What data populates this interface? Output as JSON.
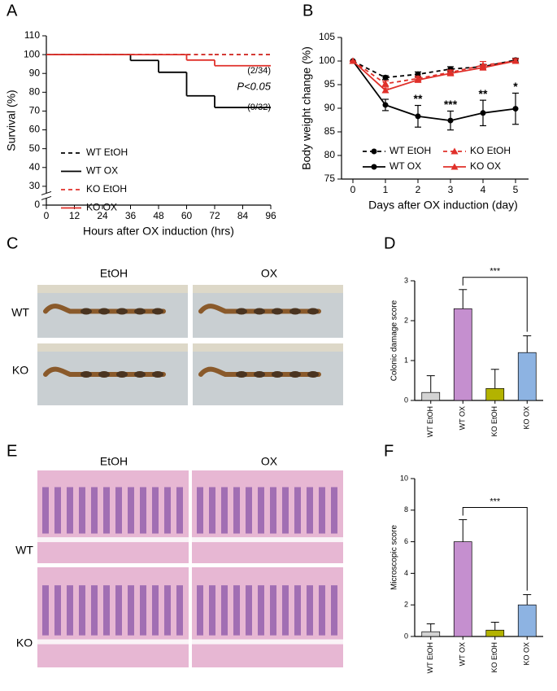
{
  "chart_data": [
    {
      "type": "step",
      "panel": "A",
      "ylabel": "Survival (%)",
      "xlabel": "Hours after OX induction (hrs)",
      "x": [
        0,
        36,
        48,
        60,
        72
      ],
      "series": [
        {
          "name": "WT EtOH",
          "color": "#000000",
          "dash": true,
          "values": [
            100,
            100,
            100,
            100,
            100
          ]
        },
        {
          "name": "WT OX",
          "color": "#000000",
          "dash": false,
          "values": [
            100,
            96.9,
            90.6,
            78.1,
            71.9
          ]
        },
        {
          "name": "KO EtOH",
          "color": "#e0302a",
          "dash": true,
          "values": [
            100,
            100,
            100,
            100,
            100
          ]
        },
        {
          "name": "KO OX",
          "color": "#e0302a",
          "dash": false,
          "values": [
            100,
            100,
            100,
            97.1,
            94.1
          ]
        }
      ],
      "xlim": [
        0,
        96
      ],
      "xticks": [
        0,
        12,
        24,
        36,
        48,
        60,
        72,
        84,
        96
      ],
      "ylim": [
        0,
        110
      ],
      "yticks": [
        0,
        30,
        40,
        50,
        60,
        70,
        80,
        90,
        100,
        110
      ],
      "y_break": [
        0,
        30
      ],
      "annotations": [
        "(2/34)",
        "P<0.05",
        "(9/32)"
      ],
      "legend": "center left"
    },
    {
      "type": "line",
      "panel": "B",
      "ylabel": "Body weight change (%)",
      "xlabel": "Days after OX induction (day)",
      "x": [
        0,
        1,
        2,
        3,
        4,
        5
      ],
      "series": [
        {
          "name": "WT EtOH",
          "color": "#000000",
          "dash": true,
          "marker": "circle",
          "values": [
            100,
            96.5,
            97.2,
            98.3,
            98.8,
            100.2
          ],
          "errors": [
            0,
            0.4,
            0.5,
            0.5,
            0.5,
            0.4
          ]
        },
        {
          "name": "WT OX",
          "color": "#000000",
          "dash": false,
          "marker": "circle",
          "values": [
            100,
            90.7,
            88.3,
            87.4,
            89.0,
            89.9
          ],
          "errors": [
            0,
            1.2,
            2.3,
            2.0,
            2.7,
            3.3
          ],
          "significance": [
            null,
            null,
            "**",
            "***",
            "**",
            "*"
          ]
        },
        {
          "name": "KO EtOH",
          "color": "#e0302a",
          "dash": true,
          "marker": "triangle",
          "values": [
            100,
            95.2,
            96.3,
            97.6,
            99.1,
            100.0
          ],
          "errors": [
            0,
            0.6,
            0.5,
            0.5,
            0.8,
            0.5
          ]
        },
        {
          "name": "KO OX",
          "color": "#e0302a",
          "dash": false,
          "marker": "triangle",
          "values": [
            100,
            93.8,
            96.0,
            97.4,
            98.6,
            100.0
          ],
          "errors": [
            0,
            0.5,
            0.5,
            0.5,
            0.5,
            0.4
          ]
        }
      ],
      "xlim": [
        -0.35,
        5.4
      ],
      "xticks": [
        0,
        1,
        2,
        3,
        4,
        5
      ],
      "ylim": [
        75,
        105
      ],
      "yticks": [
        75,
        80,
        85,
        90,
        95,
        100,
        105
      ],
      "legend": "lower center"
    },
    {
      "type": "bar",
      "panel": "D",
      "ylabel": "Colonic damage score",
      "categories": [
        "WT EtOH",
        "WT OX",
        "KO EtOH",
        "KO OX"
      ],
      "values": [
        0.2,
        2.3,
        0.3,
        1.2
      ],
      "errors": [
        0.42,
        0.48,
        0.48,
        0.42
      ],
      "colors": [
        "#d3d3d3",
        "#c58fcf",
        "#b3b300",
        "#8db3e2"
      ],
      "ylim": [
        0,
        3
      ],
      "yticks": [
        0,
        1,
        2,
        3
      ],
      "significance": {
        "between": [
          "WT OX",
          "KO OX"
        ],
        "label": "***"
      }
    },
    {
      "type": "bar",
      "panel": "F",
      "ylabel": "Microscopic score",
      "categories": [
        "WT EtOH",
        "WT OX",
        "KO EtOH",
        "KO OX"
      ],
      "values": [
        0.3,
        6.0,
        0.4,
        2.0
      ],
      "errors": [
        0.5,
        1.4,
        0.5,
        0.65
      ],
      "colors": [
        "#d3d3d3",
        "#c58fcf",
        "#b3b300",
        "#8db3e2"
      ],
      "ylim": [
        0,
        10
      ],
      "yticks": [
        0,
        2,
        4,
        6,
        8,
        10
      ],
      "significance": {
        "between": [
          "WT OX",
          "KO OX"
        ],
        "label": "***"
      }
    }
  ],
  "photos": [
    {
      "panel": "C",
      "columns": [
        "EtOH",
        "OX"
      ],
      "rows": [
        "WT",
        "KO"
      ]
    },
    {
      "panel": "E",
      "columns": [
        "EtOH",
        "OX"
      ],
      "rows": [
        "WT",
        "KO"
      ]
    }
  ]
}
